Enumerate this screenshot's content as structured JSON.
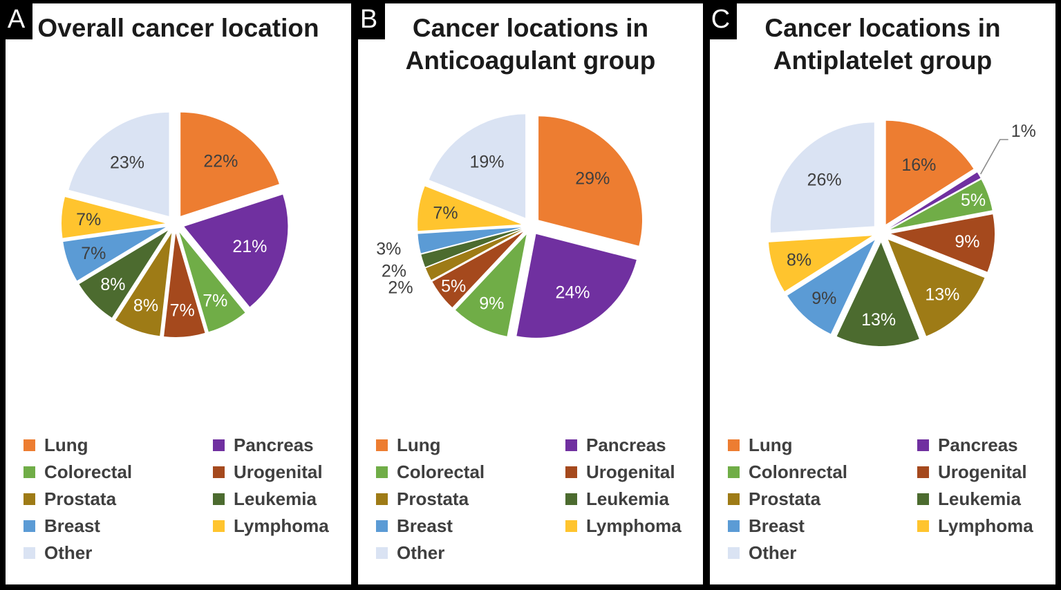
{
  "figure": {
    "background_color": "#000000",
    "panel_background": "#ffffff",
    "title_color": "#1b1b1b",
    "label_dark_color": "#3f3f3f",
    "label_light_color": "#ffffff",
    "leader_line_color": "#8a8a8a"
  },
  "chart_data": [
    {
      "type": "pie",
      "panel_letter": "A",
      "title": "Overall cancer location",
      "title_line1": "Overall cancer location",
      "title_line2": "",
      "legend_position": "bottom",
      "slices": [
        {
          "name": "Lung",
          "value": 22,
          "label": "22%",
          "color": "#ED7D31",
          "label_color": "dark",
          "placement": "inside"
        },
        {
          "name": "Pancreas",
          "value": 21,
          "label": "21%",
          "color": "#7030A0",
          "label_color": "light",
          "placement": "inside"
        },
        {
          "name": "Colorectal",
          "value": 7,
          "label": "7%",
          "color": "#70AD47",
          "label_color": "light",
          "placement": "inside"
        },
        {
          "name": "Urogenital",
          "value": 7,
          "label": "7%",
          "color": "#A5491D",
          "label_color": "light",
          "placement": "inside"
        },
        {
          "name": "Prostata",
          "value": 8,
          "label": "8%",
          "color": "#9E7B16",
          "label_color": "light",
          "placement": "inside"
        },
        {
          "name": "Leukemia",
          "value": 8,
          "label": "8%",
          "color": "#4C6B2F",
          "label_color": "light",
          "placement": "inside"
        },
        {
          "name": "Breast",
          "value": 7,
          "label": "7%",
          "color": "#5B9BD5",
          "label_color": "dark",
          "placement": "inside"
        },
        {
          "name": "Lymphoma",
          "value": 7,
          "label": "7%",
          "color": "#FFC42E",
          "label_color": "dark",
          "placement": "inside"
        },
        {
          "name": "Other",
          "value": 23,
          "label": "23%",
          "color": "#DAE3F3",
          "label_color": "dark",
          "placement": "inside"
        }
      ],
      "legend_left": [
        "Lung",
        "Colorectal",
        "Prostata",
        "Breast",
        "Other"
      ],
      "legend_right": [
        "Pancreas",
        "Urogenital",
        "Leukemia",
        "Lymphoma"
      ]
    },
    {
      "type": "pie",
      "panel_letter": "B",
      "title": "Cancer locations in Anticoagulant group",
      "title_line1": "Cancer locations in",
      "title_line2": "Anticoagulant group",
      "legend_position": "bottom",
      "slices": [
        {
          "name": "Lung",
          "value": 29,
          "label": "29%",
          "color": "#ED7D31",
          "label_color": "dark",
          "placement": "inside"
        },
        {
          "name": "Pancreas",
          "value": 24,
          "label": "24%",
          "color": "#7030A0",
          "label_color": "light",
          "placement": "inside"
        },
        {
          "name": "Colorectal",
          "value": 9,
          "label": "9%",
          "color": "#70AD47",
          "label_color": "light",
          "placement": "inside"
        },
        {
          "name": "Urogenital",
          "value": 5,
          "label": "5%",
          "color": "#A5491D",
          "label_color": "light",
          "placement": "inside"
        },
        {
          "name": "Prostata",
          "value": 2,
          "label": "2%",
          "color": "#9E7B16",
          "label_color": "dark",
          "placement": "outside"
        },
        {
          "name": "Leukemia",
          "value": 2,
          "label": "2%",
          "color": "#4C6B2F",
          "label_color": "dark",
          "placement": "outside"
        },
        {
          "name": "Breast",
          "value": 3,
          "label": "3%",
          "color": "#5B9BD5",
          "label_color": "dark",
          "placement": "outside"
        },
        {
          "name": "Lymphoma",
          "value": 7,
          "label": "7%",
          "color": "#FFC42E",
          "label_color": "dark",
          "placement": "inside"
        },
        {
          "name": "Other",
          "value": 19,
          "label": "19%",
          "color": "#DAE3F3",
          "label_color": "dark",
          "placement": "inside"
        }
      ],
      "legend_left": [
        "Lung",
        "Colorectal",
        "Prostata",
        "Breast",
        "Other"
      ],
      "legend_right": [
        "Pancreas",
        "Urogenital",
        "Leukemia",
        "Lymphoma"
      ]
    },
    {
      "type": "pie",
      "panel_letter": "C",
      "title": "Cancer locations in Antiplatelet group",
      "title_line1": "Cancer locations in",
      "title_line2": "Antiplatelet group",
      "legend_position": "bottom",
      "slices": [
        {
          "name": "Lung",
          "value": 16,
          "label": "16%",
          "color": "#ED7D31",
          "label_color": "dark",
          "placement": "inside"
        },
        {
          "name": "Pancreas",
          "value": 1,
          "label": "1%",
          "color": "#7030A0",
          "label_color": "dark",
          "placement": "callout"
        },
        {
          "name": "Colonrectal",
          "value": 5,
          "label": "5%",
          "color": "#70AD47",
          "label_color": "light",
          "placement": "inside"
        },
        {
          "name": "Urogenital",
          "value": 9,
          "label": "9%",
          "color": "#A5491D",
          "label_color": "light",
          "placement": "inside"
        },
        {
          "name": "Prostata",
          "value": 13,
          "label": "13%",
          "color": "#9E7B16",
          "label_color": "light",
          "placement": "inside"
        },
        {
          "name": "Leukemia",
          "value": 13,
          "label": "13%",
          "color": "#4C6B2F",
          "label_color": "light",
          "placement": "inside"
        },
        {
          "name": "Breast",
          "value": 9,
          "label": "9%",
          "color": "#5B9BD5",
          "label_color": "dark",
          "placement": "inside"
        },
        {
          "name": "Lymphoma",
          "value": 8,
          "label": "8%",
          "color": "#FFC42E",
          "label_color": "dark",
          "placement": "inside"
        },
        {
          "name": "Other",
          "value": 26,
          "label": "26%",
          "color": "#DAE3F3",
          "label_color": "dark",
          "placement": "inside"
        }
      ],
      "legend_left": [
        "Lung",
        "Colonrectal",
        "Prostata",
        "Breast",
        "Other"
      ],
      "legend_right": [
        "Pancreas",
        "Urogenital",
        "Leukemia",
        "Lymphoma"
      ]
    }
  ]
}
